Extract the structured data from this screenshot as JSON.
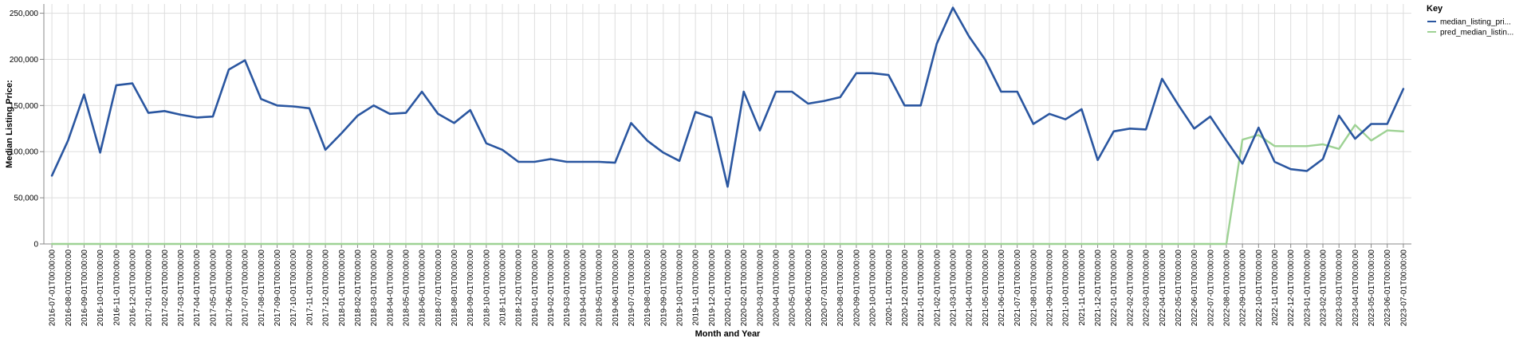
{
  "chart_data": {
    "type": "line",
    "xlabel": "Month and Year",
    "ylabel": "Median Listing Price:",
    "ylim": [
      0,
      260000
    ],
    "yticks": [
      0,
      50000,
      100000,
      150000,
      200000,
      250000
    ],
    "ytick_labels": [
      "0",
      "50,000",
      "100,000",
      "150,000",
      "200,000",
      "250,000"
    ],
    "grid": true,
    "legend_title": "Key",
    "legend_position": "top-right",
    "x": [
      "2016-07-01T00:00:00",
      "2016-08-01T00:00:00",
      "2016-09-01T00:00:00",
      "2016-10-01T00:00:00",
      "2016-11-01T00:00:00",
      "2016-12-01T00:00:00",
      "2017-01-01T00:00:00",
      "2017-02-01T00:00:00",
      "2017-03-01T00:00:00",
      "2017-04-01T00:00:00",
      "2017-05-01T00:00:00",
      "2017-06-01T00:00:00",
      "2017-07-01T00:00:00",
      "2017-08-01T00:00:00",
      "2017-09-01T00:00:00",
      "2017-10-01T00:00:00",
      "2017-11-01T00:00:00",
      "2017-12-01T00:00:00",
      "2018-01-01T00:00:00",
      "2018-02-01T00:00:00",
      "2018-03-01T00:00:00",
      "2018-04-01T00:00:00",
      "2018-05-01T00:00:00",
      "2018-06-01T00:00:00",
      "2018-07-01T00:00:00",
      "2018-08-01T00:00:00",
      "2018-09-01T00:00:00",
      "2018-10-01T00:00:00",
      "2018-11-01T00:00:00",
      "2018-12-01T00:00:00",
      "2019-01-01T00:00:00",
      "2019-02-01T00:00:00",
      "2019-03-01T00:00:00",
      "2019-04-01T00:00:00",
      "2019-05-01T00:00:00",
      "2019-06-01T00:00:00",
      "2019-07-01T00:00:00",
      "2019-08-01T00:00:00",
      "2019-09-01T00:00:00",
      "2019-10-01T00:00:00",
      "2019-11-01T00:00:00",
      "2019-12-01T00:00:00",
      "2020-01-01T00:00:00",
      "2020-02-01T00:00:00",
      "2020-03-01T00:00:00",
      "2020-04-01T00:00:00",
      "2020-05-01T00:00:00",
      "2020-06-01T00:00:00",
      "2020-07-01T00:00:00",
      "2020-08-01T00:00:00",
      "2020-09-01T00:00:00",
      "2020-10-01T00:00:00",
      "2020-11-01T00:00:00",
      "2020-12-01T00:00:00",
      "2021-01-01T00:00:00",
      "2021-02-01T00:00:00",
      "2021-03-01T00:00:00",
      "2021-04-01T00:00:00",
      "2021-05-01T00:00:00",
      "2021-06-01T00:00:00",
      "2021-07-01T00:00:00",
      "2021-08-01T00:00:00",
      "2021-09-01T00:00:00",
      "2021-10-01T00:00:00",
      "2021-11-01T00:00:00",
      "2021-12-01T00:00:00",
      "2022-01-01T00:00:00",
      "2022-02-01T00:00:00",
      "2022-03-01T00:00:00",
      "2022-04-01T00:00:00",
      "2022-05-01T00:00:00",
      "2022-06-01T00:00:00",
      "2022-07-01T00:00:00",
      "2022-08-01T00:00:00",
      "2022-09-01T00:00:00",
      "2022-10-01T00:00:00",
      "2022-11-01T00:00:00",
      "2022-12-01T00:00:00",
      "2023-01-01T00:00:00",
      "2023-02-01T00:00:00",
      "2023-03-01T00:00:00",
      "2023-04-01T00:00:00",
      "2023-05-01T00:00:00",
      "2023-06-01T00:00:00",
      "2023-07-01T00:00:00"
    ],
    "series": [
      {
        "name": "median_listing_pri...",
        "color": "#2a56a0",
        "values": [
          74000,
          112000,
          162000,
          99000,
          172000,
          174000,
          142000,
          144000,
          140000,
          137000,
          138000,
          189000,
          199000,
          157000,
          150000,
          149000,
          147000,
          102000,
          120000,
          139000,
          150000,
          141000,
          142000,
          165000,
          141000,
          131000,
          145000,
          109000,
          102000,
          89000,
          89000,
          92000,
          89000,
          89000,
          89000,
          88000,
          131000,
          112000,
          99000,
          90000,
          143000,
          137000,
          62000,
          165000,
          123000,
          165000,
          165000,
          152000,
          155000,
          159000,
          185000,
          185000,
          183000,
          150000,
          150000,
          217000,
          256000,
          225000,
          200000,
          165000,
          165000,
          130000,
          141000,
          135000,
          146000,
          91000,
          122000,
          125000,
          124000,
          179000,
          151000,
          125000,
          138000,
          112000,
          87000,
          126000,
          89000,
          81000,
          79000,
          92000,
          139000,
          114000,
          130000,
          130000,
          168000
        ]
      },
      {
        "name": "pred_median_listin...",
        "color": "#9ed294",
        "values": [
          0,
          0,
          0,
          0,
          0,
          0,
          0,
          0,
          0,
          0,
          0,
          0,
          0,
          0,
          0,
          0,
          0,
          0,
          0,
          0,
          0,
          0,
          0,
          0,
          0,
          0,
          0,
          0,
          0,
          0,
          0,
          0,
          0,
          0,
          0,
          0,
          0,
          0,
          0,
          0,
          0,
          0,
          0,
          0,
          0,
          0,
          0,
          0,
          0,
          0,
          0,
          0,
          0,
          0,
          0,
          0,
          0,
          0,
          0,
          0,
          0,
          0,
          0,
          0,
          0,
          0,
          0,
          0,
          0,
          0,
          0,
          0,
          0,
          0,
          113000,
          118000,
          106000,
          106000,
          106000,
          108000,
          103000,
          129000,
          112000,
          123000,
          122000
        ]
      }
    ]
  }
}
